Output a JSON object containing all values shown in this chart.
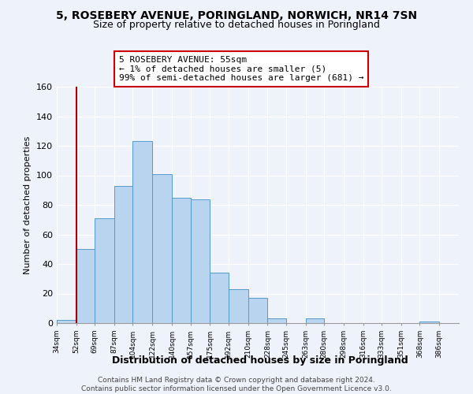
{
  "title": "5, ROSEBERY AVENUE, PORINGLAND, NORWICH, NR14 7SN",
  "subtitle": "Size of property relative to detached houses in Poringland",
  "xlabel": "Distribution of detached houses by size in Poringland",
  "ylabel": "Number of detached properties",
  "bar_color": "#b8d4ee",
  "bar_edge_color": "#5599cc",
  "bin_labels": [
    "34sqm",
    "52sqm",
    "69sqm",
    "87sqm",
    "104sqm",
    "122sqm",
    "140sqm",
    "157sqm",
    "175sqm",
    "192sqm",
    "210sqm",
    "228sqm",
    "245sqm",
    "263sqm",
    "280sqm",
    "298sqm",
    "316sqm",
    "333sqm",
    "351sqm",
    "368sqm",
    "386sqm"
  ],
  "bin_edges": [
    34,
    52,
    69,
    87,
    104,
    122,
    140,
    157,
    175,
    192,
    210,
    228,
    245,
    263,
    280,
    298,
    316,
    333,
    351,
    368,
    386
  ],
  "bar_heights": [
    2,
    50,
    71,
    93,
    123,
    101,
    85,
    84,
    34,
    23,
    17,
    3,
    0,
    3,
    0,
    0,
    0,
    0,
    0,
    1,
    0
  ],
  "ylim": [
    0,
    160
  ],
  "yticks": [
    0,
    20,
    40,
    60,
    80,
    100,
    120,
    140,
    160
  ],
  "property_line_x": 52,
  "property_line_color": "#aa0000",
  "annotation_title": "5 ROSEBERY AVENUE: 55sqm",
  "annotation_line1": "← 1% of detached houses are smaller (5)",
  "annotation_line2": "99% of semi-detached houses are larger (681) →",
  "annotation_box_color": "#ffffff",
  "annotation_box_edge": "#cc0000",
  "footer_line1": "Contains HM Land Registry data © Crown copyright and database right 2024.",
  "footer_line2": "Contains public sector information licensed under the Open Government Licence v3.0.",
  "background_color": "#eef2fa"
}
